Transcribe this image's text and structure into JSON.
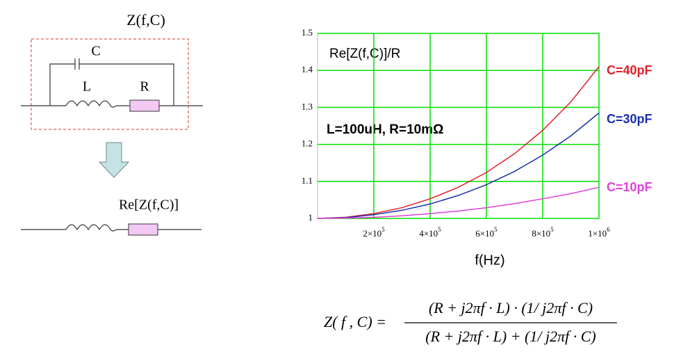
{
  "diagram": {
    "title": "Z(f,C)",
    "capacitor": "C",
    "inductor": "L",
    "resistor": "R",
    "result": "Re[Z(f,C)]"
  },
  "chart_data": {
    "type": "line",
    "annotations": [
      "Re[Z(f,C)]/R",
      "L=100uH, R=10mΩ"
    ],
    "x_label": "f(Hz)",
    "x": [
      0,
      100000,
      200000,
      300000,
      400000,
      500000,
      600000,
      700000,
      800000,
      900000,
      1000000
    ],
    "series": [
      {
        "name": "C=40pF",
        "color": "#e0202a",
        "values": [
          1,
          1.003,
          1.013,
          1.029,
          1.053,
          1.084,
          1.124,
          1.175,
          1.238,
          1.315,
          1.41
        ]
      },
      {
        "name": "C=30pF",
        "color": "#1a2fb0",
        "values": [
          1,
          1.002,
          1.01,
          1.022,
          1.039,
          1.062,
          1.091,
          1.127,
          1.171,
          1.223,
          1.285
        ]
      },
      {
        "name": "C=10pF",
        "color": "#e040d8",
        "values": [
          1,
          1.001,
          1.003,
          1.007,
          1.013,
          1.02,
          1.029,
          1.04,
          1.053,
          1.067,
          1.084
        ]
      }
    ],
    "xlim": [
      0,
      1000000
    ],
    "ylim": [
      1,
      1.5
    ],
    "xticks": [
      {
        "value": 200000,
        "label": "2×10",
        "exponent": "5"
      },
      {
        "value": 400000,
        "label": "4×10",
        "exponent": "5"
      },
      {
        "value": 600000,
        "label": "6×10",
        "exponent": "5"
      },
      {
        "value": 800000,
        "label": "8×10",
        "exponent": "5"
      },
      {
        "value": 1000000,
        "label": "1×10",
        "exponent": "6"
      }
    ],
    "yticks": [
      1,
      1.1,
      1.2,
      1.3,
      1.4,
      1.5
    ],
    "grid": true,
    "grid_color": "#00dd00"
  },
  "formula": {
    "lhs": "Z( f , C) =",
    "numerator": "(R + j2πf · L) · (1/ j2πf · C)",
    "denominator": "(R + j2πf · L) + (1/ j2πf · C)"
  }
}
